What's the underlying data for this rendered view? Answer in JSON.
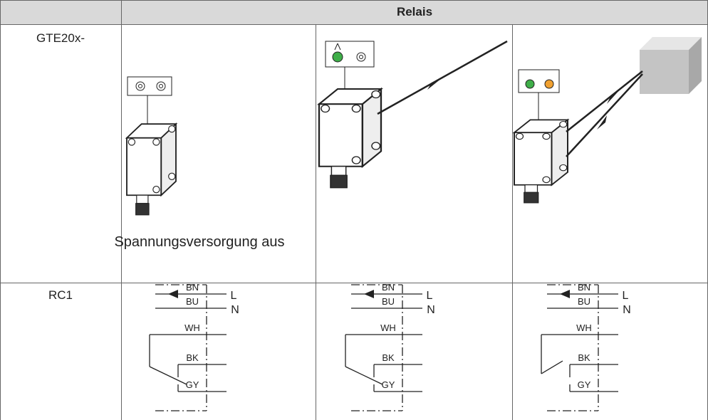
{
  "table": {
    "header": {
      "title": "Relais"
    },
    "rows": [
      {
        "label": "GTE20x-",
        "cells": [
          {
            "caption": "Spannungsversorgung aus"
          }
        ]
      },
      {
        "label": "RC1"
      }
    ]
  },
  "wiring": {
    "wires": [
      "BN",
      "BU",
      "WH",
      "BK",
      "GY"
    ],
    "terminals": [
      "L",
      "N"
    ]
  }
}
